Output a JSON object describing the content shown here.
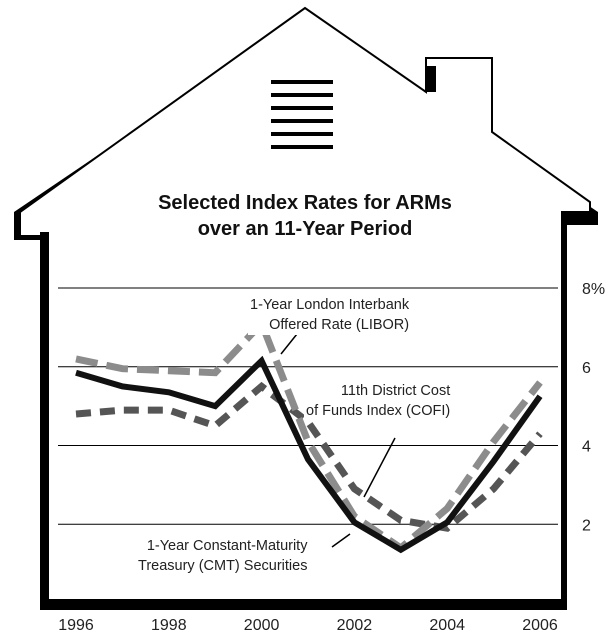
{
  "chart_data": {
    "type": "line",
    "title": "Selected Index Rates for ARMs",
    "subtitle": "over an 11-Year Period",
    "x": [
      1996,
      1997,
      1998,
      1999,
      2000,
      2001,
      2002,
      2003,
      2004,
      2005,
      2006
    ],
    "x_tick_labels": [
      "1996",
      "1998",
      "2000",
      "2002",
      "2004",
      "2006"
    ],
    "y_tick_labels": [
      "8%",
      "6",
      "4",
      "2"
    ],
    "ylim": [
      0,
      8
    ],
    "grid": true,
    "series": [
      {
        "name": "1-Year London Interbank Offered Rate (LIBOR)",
        "style": "dashed",
        "color": "#8c8c8c",
        "values": [
          6.2,
          5.95,
          5.9,
          5.85,
          7.1,
          4.1,
          2.2,
          1.4,
          2.4,
          4.1,
          5.6
        ]
      },
      {
        "name": "11th District Cost of Funds Index (COFI)",
        "style": "dashed",
        "color": "#555555",
        "values": [
          4.8,
          4.9,
          4.9,
          4.5,
          5.5,
          4.6,
          2.9,
          2.1,
          1.9,
          2.9,
          4.3
        ]
      },
      {
        "name": "1-Year Constant-Maturity Treasury (CMT) Securities",
        "style": "solid",
        "color": "#111111",
        "values": [
          5.85,
          5.5,
          5.35,
          5.0,
          6.15,
          3.65,
          2.05,
          1.35,
          2.05,
          3.6,
          5.25
        ]
      }
    ],
    "annotations": [
      {
        "line1": "1-Year London Interbank",
        "line2": "Offered Rate (LIBOR)"
      },
      {
        "line1": "11th District Cost",
        "line2": "of Funds Index (COFI)"
      },
      {
        "line1": "1-Year Constant-Maturity",
        "line2": "Treasury (CMT) Securities"
      }
    ]
  }
}
